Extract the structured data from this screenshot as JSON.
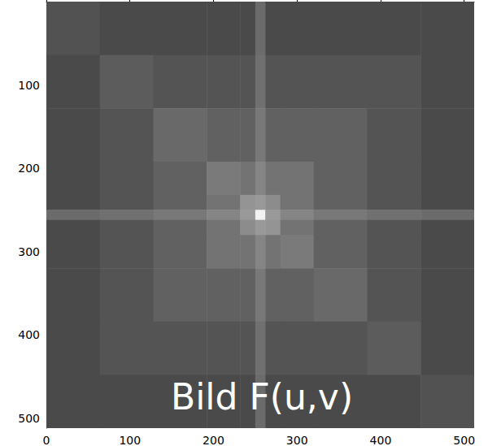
{
  "chart_data": {
    "type": "heatmap",
    "annotation": "Bild F(u,v)",
    "xlim": [
      0,
      512
    ],
    "ylim": [
      0,
      512
    ],
    "xticks": [
      0,
      100,
      200,
      300,
      400,
      500
    ],
    "yticks": [
      100,
      200,
      300,
      400,
      500
    ],
    "x_edges": [
      0,
      64,
      128,
      192,
      232,
      250,
      262,
      280,
      320,
      384,
      448,
      512
    ],
    "y_edges": [
      0,
      64,
      128,
      192,
      232,
      250,
      262,
      280,
      320,
      384,
      448,
      512
    ],
    "zlim": [
      0,
      1
    ],
    "cells": [
      [
        0.32,
        0.29,
        0.29,
        0.29,
        0.29,
        0.42,
        0.29,
        0.29,
        0.29,
        0.29,
        0.29
      ],
      [
        0.29,
        0.36,
        0.33,
        0.33,
        0.33,
        0.44,
        0.33,
        0.33,
        0.33,
        0.33,
        0.29
      ],
      [
        0.29,
        0.33,
        0.41,
        0.38,
        0.38,
        0.47,
        0.38,
        0.38,
        0.38,
        0.33,
        0.29
      ],
      [
        0.29,
        0.33,
        0.38,
        0.48,
        0.45,
        0.52,
        0.45,
        0.45,
        0.38,
        0.33,
        0.29
      ],
      [
        0.29,
        0.33,
        0.38,
        0.45,
        0.58,
        0.6,
        0.55,
        0.45,
        0.38,
        0.33,
        0.29
      ],
      [
        0.42,
        0.44,
        0.47,
        0.52,
        0.6,
        0.95,
        0.6,
        0.52,
        0.47,
        0.44,
        0.42
      ],
      [
        0.29,
        0.33,
        0.38,
        0.45,
        0.55,
        0.6,
        0.58,
        0.45,
        0.38,
        0.33,
        0.29
      ],
      [
        0.29,
        0.33,
        0.38,
        0.45,
        0.45,
        0.52,
        0.45,
        0.48,
        0.38,
        0.33,
        0.29
      ],
      [
        0.29,
        0.33,
        0.38,
        0.38,
        0.38,
        0.47,
        0.38,
        0.38,
        0.41,
        0.33,
        0.29
      ],
      [
        0.29,
        0.33,
        0.33,
        0.33,
        0.33,
        0.44,
        0.33,
        0.33,
        0.33,
        0.36,
        0.29
      ],
      [
        0.29,
        0.29,
        0.29,
        0.29,
        0.29,
        0.42,
        0.29,
        0.29,
        0.29,
        0.29,
        0.32
      ]
    ]
  }
}
